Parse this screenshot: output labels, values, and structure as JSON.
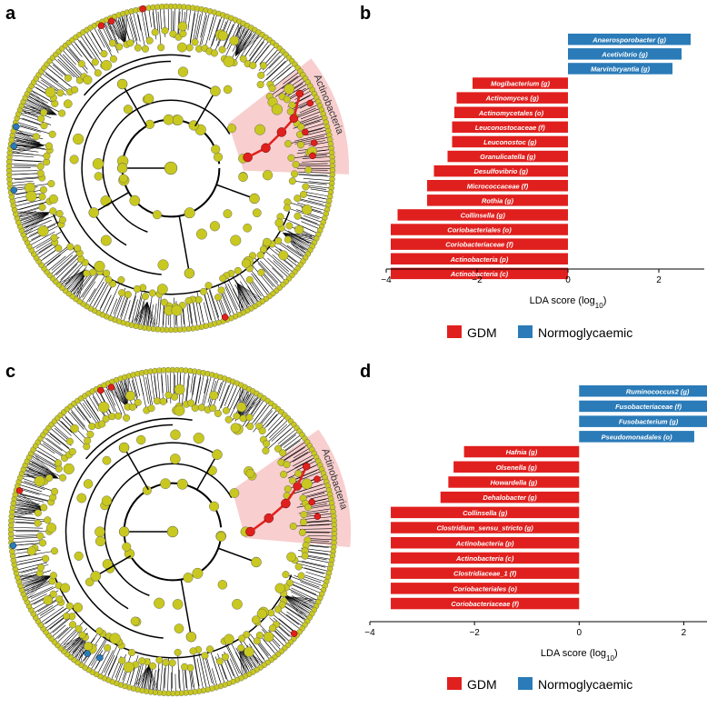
{
  "panels": {
    "a": "a",
    "b": "b",
    "c": "c",
    "d": "d"
  },
  "cladogram_labels": {
    "top": "Actinobacteria",
    "bottom": "Actinobacteria"
  },
  "legend": {
    "gdm": "GDM",
    "normo": "Normoglycaemic"
  },
  "colors": {
    "gdm": "#e0201e",
    "normo": "#2a7bb8",
    "node": "#c8c820",
    "highlight": "#f7c6c6"
  },
  "chart_data": [
    {
      "type": "bar",
      "orientation": "horizontal",
      "xlabel": "LDA score (log10)",
      "xlim": [
        -4,
        3
      ],
      "xticks": [
        -4,
        -2,
        0,
        2
      ],
      "bars": [
        {
          "label": "Anaerosporobacter (g)",
          "value": 2.7,
          "group": "Normoglycaemic"
        },
        {
          "label": "Acetivibrio (g)",
          "value": 2.5,
          "group": "Normoglycaemic"
        },
        {
          "label": "Marvinbryantia (g)",
          "value": 2.3,
          "group": "Normoglycaemic"
        },
        {
          "label": "Mogibacterium (g)",
          "value": -2.1,
          "group": "GDM"
        },
        {
          "label": "Actinomyces (g)",
          "value": -2.45,
          "group": "GDM"
        },
        {
          "label": "Actinomycetales (o)",
          "value": -2.5,
          "group": "GDM"
        },
        {
          "label": "Leuconostocaceae (f)",
          "value": -2.55,
          "group": "GDM"
        },
        {
          "label": "Leuconostoc (g)",
          "value": -2.55,
          "group": "GDM"
        },
        {
          "label": "Granulicatella (g)",
          "value": -2.65,
          "group": "GDM"
        },
        {
          "label": "Desulfovibrio (g)",
          "value": -2.95,
          "group": "GDM"
        },
        {
          "label": "Micrococcaceae (f)",
          "value": -3.1,
          "group": "GDM"
        },
        {
          "label": "Rothia (g)",
          "value": -3.1,
          "group": "GDM"
        },
        {
          "label": "Collinsella (g)",
          "value": -3.75,
          "group": "GDM"
        },
        {
          "label": "Coriobacteriales (o)",
          "value": -3.9,
          "group": "GDM"
        },
        {
          "label": "Coriobacteriaceae (f)",
          "value": -3.9,
          "group": "GDM"
        },
        {
          "label": "Actinobacteria (p)",
          "value": -3.9,
          "group": "GDM"
        },
        {
          "label": "Actinobacteria (c)",
          "value": -3.9,
          "group": "GDM"
        }
      ]
    },
    {
      "type": "bar",
      "orientation": "horizontal",
      "xlabel": "LDA score (log10)",
      "xlim": [
        -4,
        3
      ],
      "xticks": [
        -4,
        -2,
        0,
        2
      ],
      "bars": [
        {
          "label": "Ruminococcus2 (g)",
          "value": 3.0,
          "group": "Normoglycaemic"
        },
        {
          "label": "Fusobacteriaceae (f)",
          "value": 2.65,
          "group": "Normoglycaemic"
        },
        {
          "label": "Fusobacterium (g)",
          "value": 2.65,
          "group": "Normoglycaemic"
        },
        {
          "label": "Pseudomonadales (o)",
          "value": 2.2,
          "group": "Normoglycaemic"
        },
        {
          "label": "Hafnia (g)",
          "value": -2.2,
          "group": "GDM"
        },
        {
          "label": "Olsenella (g)",
          "value": -2.4,
          "group": "GDM"
        },
        {
          "label": "Howardella (g)",
          "value": -2.5,
          "group": "GDM"
        },
        {
          "label": "Dehalobacter (g)",
          "value": -2.65,
          "group": "GDM"
        },
        {
          "label": "Collinsella (g)",
          "value": -3.6,
          "group": "GDM"
        },
        {
          "label": "Clostridium_sensu_stricto (g)",
          "value": -3.6,
          "group": "GDM"
        },
        {
          "label": "Actinobacteria (p)",
          "value": -3.6,
          "group": "GDM"
        },
        {
          "label": "Actinobacteria (c)",
          "value": -3.6,
          "group": "GDM"
        },
        {
          "label": "Clostridiaceae_1 (f)",
          "value": -3.6,
          "group": "GDM"
        },
        {
          "label": "Coriobacteriales (o)",
          "value": -3.6,
          "group": "GDM"
        },
        {
          "label": "Coriobacteriaceae (f)",
          "value": -3.6,
          "group": "GDM"
        }
      ]
    }
  ]
}
